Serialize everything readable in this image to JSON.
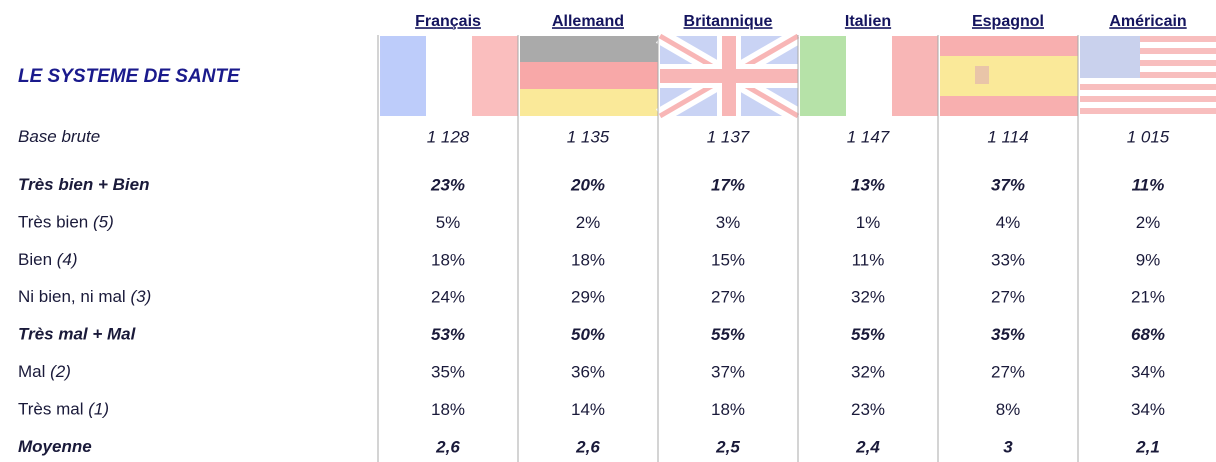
{
  "table": {
    "title": "LE SYSTEME DE SANTE",
    "columns": [
      "Français",
      "Allemand",
      "Britannique",
      "Italien",
      "Espagnol",
      "Américain"
    ],
    "rows": [
      {
        "label": "Base brute",
        "style": "italic",
        "cells": [
          "1 128",
          "1 135",
          "1 137",
          "1 147",
          "1 114",
          "1 015"
        ]
      },
      {
        "label": "Très bien + Bien",
        "style": "bold-italic",
        "cells": [
          "23%",
          "20%",
          "17%",
          "13%",
          "37%",
          "11%"
        ]
      },
      {
        "label": "Très bien",
        "code": "(5)",
        "style": "normal",
        "cells": [
          "5%",
          "2%",
          "3%",
          "1%",
          "4%",
          "2%"
        ]
      },
      {
        "label": "Bien",
        "code": "(4)",
        "style": "normal",
        "cells": [
          "18%",
          "18%",
          "15%",
          "11%",
          "33%",
          "9%"
        ]
      },
      {
        "label": "Ni bien, ni mal",
        "code": "(3)",
        "style": "normal",
        "cells": [
          "24%",
          "29%",
          "27%",
          "32%",
          "27%",
          "21%"
        ]
      },
      {
        "label": "Très mal + Mal",
        "style": "bold-italic",
        "cells": [
          "53%",
          "50%",
          "55%",
          "55%",
          "35%",
          "68%"
        ]
      },
      {
        "label": "Mal",
        "code": "(2)",
        "style": "normal",
        "cells": [
          "35%",
          "36%",
          "37%",
          "32%",
          "27%",
          "34%"
        ]
      },
      {
        "label": "Très mal",
        "code": "(1)",
        "style": "normal",
        "cells": [
          "18%",
          "14%",
          "18%",
          "23%",
          "8%",
          "34%"
        ]
      },
      {
        "label": "Moyenne",
        "style": "bold-italic",
        "cells": [
          "2,6",
          "2,6",
          "2,5",
          "2,4",
          "3",
          "2,1"
        ]
      }
    ]
  }
}
